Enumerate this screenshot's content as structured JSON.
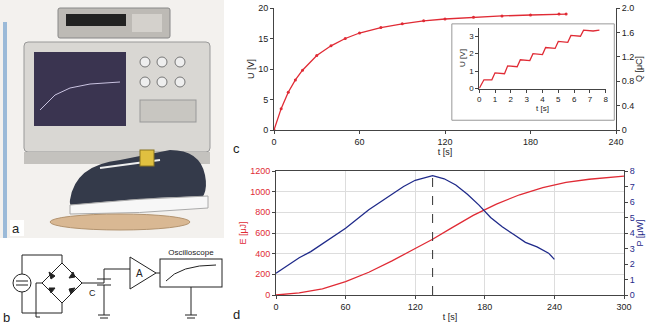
{
  "figure": {
    "a": {
      "label": "a"
    },
    "b": {
      "label": "b",
      "capacitor": "C",
      "amplifier": "A",
      "display": "Oscilloscope"
    }
  },
  "chart_data": [
    {
      "label": "c",
      "type": "line",
      "grid": false,
      "x_label": "t [s]",
      "y_label": "U [V]",
      "y2_label": "Q [μC]",
      "x": [
        0,
        5,
        10,
        15,
        20,
        30,
        40,
        50,
        60,
        75,
        90,
        105,
        120,
        140,
        160,
        180,
        200,
        205
      ],
      "series": [
        {
          "color": "#e02b35",
          "marker": "circle",
          "line_style": "solid",
          "values": [
            0,
            3.5,
            6.2,
            8.2,
            9.8,
            12.2,
            13.8,
            15.0,
            15.9,
            16.8,
            17.4,
            17.9,
            18.2,
            18.5,
            18.7,
            18.85,
            19.0,
            19.0
          ]
        }
      ],
      "xlim": [
        0,
        240
      ],
      "xticks": [
        0,
        60,
        120,
        180,
        240
      ],
      "ylim": [
        0,
        20
      ],
      "yticks": [
        0,
        5,
        10,
        15,
        20
      ],
      "y2lim": [
        0,
        2
      ],
      "y2ticks": [
        0,
        0.4,
        0.8,
        1.2,
        1.6,
        {
          "value": 2,
          "label": "2.0"
        }
      ],
      "inset": {
        "type": "line",
        "grid": false,
        "x_label": "t [s]",
        "y_label": "U [V]",
        "x": [
          0,
          0.3,
          0.8,
          1.0,
          1.6,
          1.8,
          2.4,
          2.6,
          3.2,
          3.4,
          4.0,
          4.2,
          4.8,
          5.0,
          5.6,
          5.8,
          6.4,
          6.6,
          7.2,
          7.6
        ],
        "series": [
          {
            "color": "#e02b35",
            "line_style": "solid",
            "values": [
              0,
              0.5,
              0.5,
              0.9,
              0.85,
              1.3,
              1.25,
              1.65,
              1.6,
              2.0,
              1.95,
              2.35,
              2.3,
              2.7,
              2.65,
              3.05,
              3.0,
              3.35,
              3.3,
              3.35
            ]
          }
        ],
        "xlim": [
          0,
          8
        ],
        "xticks": [
          0,
          1,
          2,
          3,
          4,
          5,
          6,
          7,
          8
        ],
        "ylim": [
          0,
          3.5
        ],
        "yticks": [
          0,
          1,
          2,
          3
        ]
      }
    },
    {
      "label": "d",
      "type": "line",
      "grid": true,
      "x_label": "t [s]",
      "y_label": "E [μJ]",
      "y2_label": "P [μW]",
      "dashed_line_x": 135,
      "series": [
        {
          "color": "#e02b35",
          "line_style": "solid",
          "x": [
            0,
            20,
            40,
            60,
            80,
            100,
            120,
            135,
            150,
            170,
            190,
            210,
            230,
            250,
            270,
            300
          ],
          "values": [
            0,
            20,
            60,
            130,
            220,
            330,
            450,
            540,
            640,
            770,
            880,
            970,
            1040,
            1090,
            1120,
            1150
          ]
        },
        {
          "color": "#1f2a8a",
          "line_style": "solid",
          "axis": "y2",
          "x": [
            0,
            10,
            20,
            30,
            40,
            50,
            60,
            70,
            80,
            90,
            100,
            110,
            120,
            130,
            135,
            145,
            155,
            165,
            175,
            185,
            195,
            205,
            215,
            225,
            235,
            240
          ],
          "values": [
            1.4,
            1.9,
            2.4,
            2.8,
            3.3,
            3.8,
            4.3,
            4.9,
            5.5,
            6.0,
            6.5,
            7.0,
            7.4,
            7.6,
            7.7,
            7.5,
            7.1,
            6.5,
            5.8,
            5.0,
            4.4,
            3.9,
            3.4,
            3.1,
            2.7,
            2.3
          ]
        }
      ],
      "xlim": [
        0,
        300
      ],
      "xticks": [
        0,
        60,
        120,
        180,
        240,
        300
      ],
      "ylim": [
        0,
        1200
      ],
      "yticks": [
        0,
        200,
        400,
        600,
        800,
        1000,
        1200
      ],
      "y2lim": [
        0,
        8
      ],
      "y2ticks": [
        0,
        1,
        2,
        3,
        4,
        5,
        6,
        7,
        8
      ]
    }
  ]
}
